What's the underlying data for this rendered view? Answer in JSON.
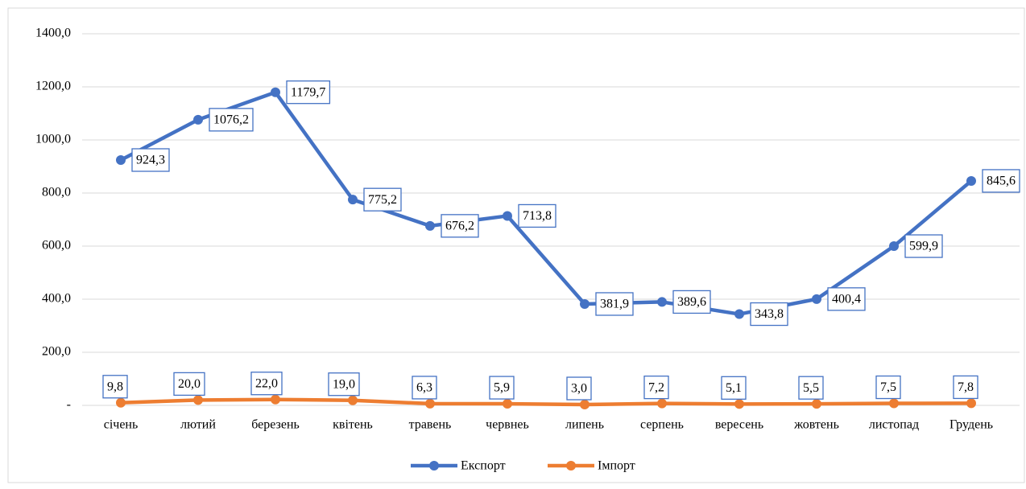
{
  "chart_data": {
    "type": "line",
    "categories": [
      "січень",
      "лютий",
      "березень",
      "квітень",
      "травень",
      "червнеь",
      "липень",
      "серпень",
      "вересень",
      "жовтень",
      "листопад",
      "Грудень"
    ],
    "series": [
      {
        "name": "Експорт",
        "color": "#4472c4",
        "values": [
          924.3,
          1076.2,
          1179.7,
          775.2,
          676.2,
          713.8,
          381.9,
          389.6,
          343.8,
          400.4,
          599.9,
          845.6
        ],
        "value_labels": [
          "924,3",
          "1076,2",
          "1179,7",
          "775,2",
          "676,2",
          "713,8",
          "381,9",
          "389,6",
          "343,8",
          "400,4",
          "599,9",
          "845,6"
        ]
      },
      {
        "name": "Імпорт",
        "color": "#ed7d31",
        "values": [
          9.8,
          20.0,
          22.0,
          19.0,
          6.3,
          5.9,
          3.0,
          7.2,
          5.1,
          5.5,
          7.5,
          7.8
        ],
        "value_labels": [
          "9,8",
          "20,0",
          "22,0",
          "19,0",
          "6,3",
          "5,9",
          "3,0",
          "7,2",
          "5,1",
          "5,5",
          "7,5",
          "7,8"
        ]
      }
    ],
    "ylim": [
      0,
      1400
    ],
    "yticks": [
      {
        "value": 0,
        "label": "-"
      },
      {
        "value": 200,
        "label": "200,0"
      },
      {
        "value": 400,
        "label": "400,0"
      },
      {
        "value": 600,
        "label": "600,0"
      },
      {
        "value": 800,
        "label": "800,0"
      },
      {
        "value": 1000,
        "label": "1000,0"
      },
      {
        "value": 1200,
        "label": "1200,0"
      },
      {
        "value": 1400,
        "label": "1400,0"
      }
    ],
    "grid": true,
    "legend": "bottom"
  }
}
